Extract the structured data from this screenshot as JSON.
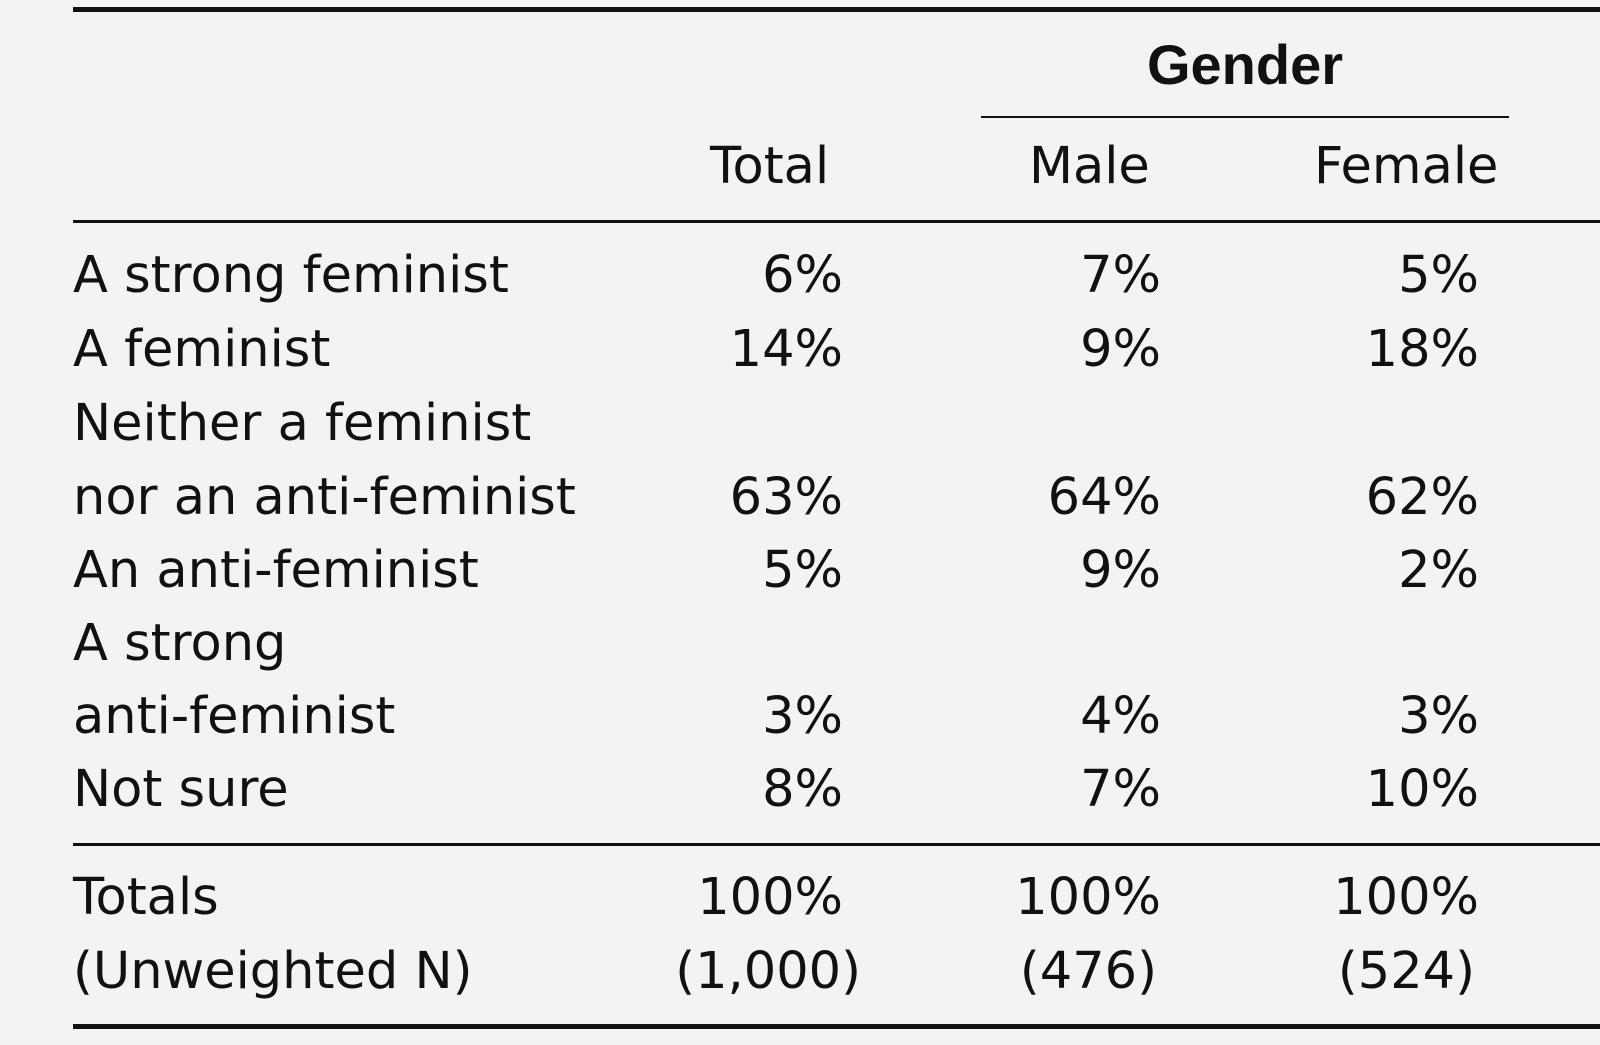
{
  "table": {
    "group_header": "Gender",
    "columns": {
      "total": "Total",
      "male": "Male",
      "female": "Female"
    },
    "rows": [
      {
        "label_lines": [
          "A strong feminist"
        ],
        "total": "6%",
        "male": "7%",
        "female": "5%"
      },
      {
        "label_lines": [
          "A feminist"
        ],
        "total": "14%",
        "male": "9%",
        "female": "18%"
      },
      {
        "label_lines": [
          "Neither a feminist",
          "nor an anti-feminist"
        ],
        "total": "63%",
        "male": "64%",
        "female": "62%"
      },
      {
        "label_lines": [
          "An anti-feminist"
        ],
        "total": "5%",
        "male": "9%",
        "female": "2%"
      },
      {
        "label_lines": [
          "A strong",
          "anti-feminist"
        ],
        "total": "3%",
        "male": "4%",
        "female": "3%"
      },
      {
        "label_lines": [
          "Not sure"
        ],
        "total": "8%",
        "male": "7%",
        "female": "10%"
      }
    ],
    "footer": [
      {
        "label": "Totals",
        "total": "100%",
        "male": "100%",
        "female": "100%"
      },
      {
        "label": "(Unweighted N)",
        "total": "(1,000)",
        "male": "(476)",
        "female": "(524)"
      }
    ]
  }
}
